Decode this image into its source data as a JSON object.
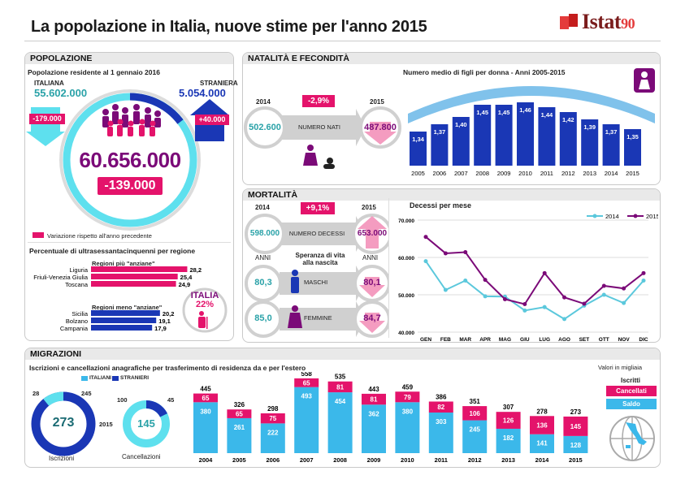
{
  "header": {
    "title": "La popolazione in Italia, nuove stime per l'anno 2015",
    "brand": "Istat",
    "brand_badge": "90"
  },
  "popolazione": {
    "section_title": "POPOLAZIONE",
    "subtitle": "Popolazione residente al 1 gennaio 2016",
    "italiana_label": "ITALIANA",
    "italiana_value": "55.602.000",
    "italiana_change": "-179.000",
    "straniera_label": "STRANIERA",
    "straniera_value": "5.054.000",
    "straniera_change": "+40.000",
    "totale": "60.656.000",
    "totale_change": "-139.000",
    "legend": "Variazione rispetto all'anno precedente"
  },
  "anziani": {
    "title": "Percentuale di ultrasessantacinquenni per regione",
    "top_label": "Regioni più \"anziane\"",
    "bottom_label": "Regioni meno \"anziane\"",
    "top": [
      {
        "name": "Liguria",
        "value": 28.2,
        "label": "28,2"
      },
      {
        "name": "Friuli-Venezia Giulia",
        "value": 25.4,
        "label": "25,4"
      },
      {
        "name": "Toscana",
        "value": 24.9,
        "label": "24,9"
      }
    ],
    "bottom": [
      {
        "name": "Sicilia",
        "value": 20.2,
        "label": "20,2"
      },
      {
        "name": "Bolzano",
        "value": 19.1,
        "label": "19,1"
      },
      {
        "name": "Campania",
        "value": 17.9,
        "label": "17,9"
      }
    ],
    "italia_label": "ITALIA",
    "italia_value": "22%"
  },
  "natalita": {
    "section_title": "NATALITÀ E FECONDITÀ",
    "year_a": "2014",
    "year_b": "2015",
    "value_a": "502.600",
    "value_b": "487.800",
    "change": "-2,9%",
    "label": "NUMERO NATI"
  },
  "fecondita": {
    "title": "Numero medio di figli per donna - Anni 2005-2015",
    "colors": {
      "bar": "#1a37b5",
      "arc": "#6ab7e8"
    }
  },
  "mortalita": {
    "section_title": "MORTALITÀ",
    "year_a": "2014",
    "year_b": "2015",
    "decessi_a": "598.000",
    "decessi_b": "653.000",
    "decessi_change": "+9,1%",
    "decessi_label": "NUMERO DECESSI",
    "anni_label": "ANNI",
    "speranza_label": "Speranza di vita alla nascita",
    "maschi_label": "MASCHI",
    "maschi_a": "80,3",
    "maschi_b": "80,1",
    "femmine_label": "FEMMINE",
    "femmine_a": "85,0",
    "femmine_b": "84,7"
  },
  "decessi_chart": {
    "title": "Decessi per mese"
  },
  "migrazioni": {
    "section_title": "MIGRAZIONI",
    "subtitle": "Iscrizioni e cancellazioni anagrafiche per trasferimento di residenza da e per l'estero",
    "legend_italiani": "ITALIANI",
    "legend_stranieri": "STRANIERI",
    "units": "Valori in migliaia",
    "iscrizioni_label": "Iscrizioni",
    "cancellazioni_label": "Cancellazioni",
    "year": "2015",
    "iscr_total": "273",
    "iscr_italiani": "28",
    "iscr_stranieri": "245",
    "canc_total": "145",
    "canc_italiani": "100",
    "canc_stranieri": "45",
    "legend_iscritti": "Iscritti",
    "legend_cancellati": "Cancellati",
    "legend_saldo": "Saldo",
    "colors": {
      "saldo": "#3bb8ea",
      "cancellati": "#e4136b",
      "italiani": "#3bb8ea",
      "stranieri": "#1a37b5"
    }
  },
  "chart_data": [
    {
      "type": "bar",
      "title": "Numero medio di figli per donna - Anni 2005-2015",
      "categories": [
        "2005",
        "2006",
        "2007",
        "2008",
        "2009",
        "2010",
        "2011",
        "2012",
        "2013",
        "2014",
        "2015"
      ],
      "values": [
        1.34,
        1.37,
        1.4,
        1.45,
        1.45,
        1.46,
        1.44,
        1.42,
        1.39,
        1.37,
        1.35
      ],
      "labels": [
        "1,34",
        "1,37",
        "1,40",
        "1,45",
        "1,45",
        "1,46",
        "1,44",
        "1,42",
        "1,39",
        "1,37",
        "1,35"
      ]
    },
    {
      "type": "line",
      "title": "Decessi per mese",
      "categories": [
        "GEN",
        "FEB",
        "MAR",
        "APR",
        "MAG",
        "GIU",
        "LUG",
        "AGO",
        "SET",
        "OTT",
        "NOV",
        "DIC"
      ],
      "yticks": [
        "70.000",
        "60.000",
        "50.000",
        "40.000"
      ],
      "ylim": [
        40000,
        70000
      ],
      "series": [
        {
          "name": "2014",
          "color": "#5bc8dc",
          "values": [
            59000,
            51300,
            53800,
            49600,
            49500,
            45800,
            46700,
            43500,
            47100,
            50000,
            47800,
            53800
          ]
        },
        {
          "name": "2015",
          "color": "#7b0a78",
          "values": [
            65500,
            61100,
            61400,
            54000,
            48800,
            47500,
            55800,
            49300,
            47600,
            52400,
            51700,
            55800
          ]
        }
      ]
    },
    {
      "type": "bar",
      "title": "Iscrizioni e cancellazioni anagrafiche",
      "categories": [
        "2004",
        "2005",
        "2006",
        "2007",
        "2008",
        "2009",
        "2010",
        "2011",
        "2012",
        "2013",
        "2014",
        "2015"
      ],
      "series": [
        {
          "name": "Saldo",
          "values": [
            380,
            261,
            222,
            493,
            454,
            362,
            380,
            303,
            245,
            182,
            141,
            128
          ]
        },
        {
          "name": "Cancellati",
          "values": [
            65,
            65,
            75,
            65,
            81,
            81,
            79,
            82,
            106,
            126,
            136,
            145
          ]
        },
        {
          "name": "Iscritti",
          "values": [
            445,
            326,
            298,
            558,
            535,
            443,
            459,
            386,
            351,
            307,
            278,
            273
          ]
        }
      ]
    }
  ]
}
